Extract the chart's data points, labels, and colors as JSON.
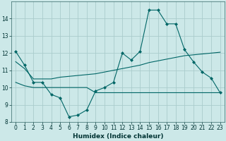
{
  "xlabel": "Humidex (Indice chaleur)",
  "background_color": "#cce8e8",
  "grid_color": "#aacccc",
  "line_color": "#006666",
  "x_data": [
    0,
    1,
    2,
    3,
    4,
    5,
    6,
    7,
    8,
    9,
    10,
    11,
    12,
    13,
    14,
    15,
    16,
    17,
    18,
    19,
    20,
    21,
    22,
    23
  ],
  "curve1": [
    12.1,
    11.3,
    10.3,
    10.3,
    9.6,
    9.4,
    8.3,
    8.4,
    8.7,
    9.8,
    10.0,
    10.3,
    12.0,
    11.6,
    12.1,
    14.5,
    14.5,
    13.7,
    13.7,
    12.2,
    11.5,
    10.9,
    10.55,
    9.7
  ],
  "curve2": [
    11.5,
    11.1,
    10.5,
    10.5,
    10.5,
    10.6,
    10.65,
    10.7,
    10.75,
    10.8,
    10.9,
    11.0,
    11.1,
    11.2,
    11.3,
    11.45,
    11.55,
    11.65,
    11.75,
    11.85,
    11.9,
    11.95,
    12.0,
    12.05
  ],
  "curve3": [
    10.3,
    10.1,
    10.0,
    10.0,
    10.0,
    10.0,
    10.0,
    10.0,
    10.0,
    9.7,
    9.7,
    9.7,
    9.7,
    9.7,
    9.7,
    9.7,
    9.7,
    9.7,
    9.7,
    9.7,
    9.7,
    9.7,
    9.7,
    9.7
  ],
  "ylim": [
    8,
    15
  ],
  "xlim": [
    -0.5,
    23.5
  ],
  "yticks": [
    8,
    9,
    10,
    11,
    12,
    13,
    14
  ],
  "xticks": [
    0,
    1,
    2,
    3,
    4,
    5,
    6,
    7,
    8,
    9,
    10,
    11,
    12,
    13,
    14,
    15,
    16,
    17,
    18,
    19,
    20,
    21,
    22,
    23
  ]
}
